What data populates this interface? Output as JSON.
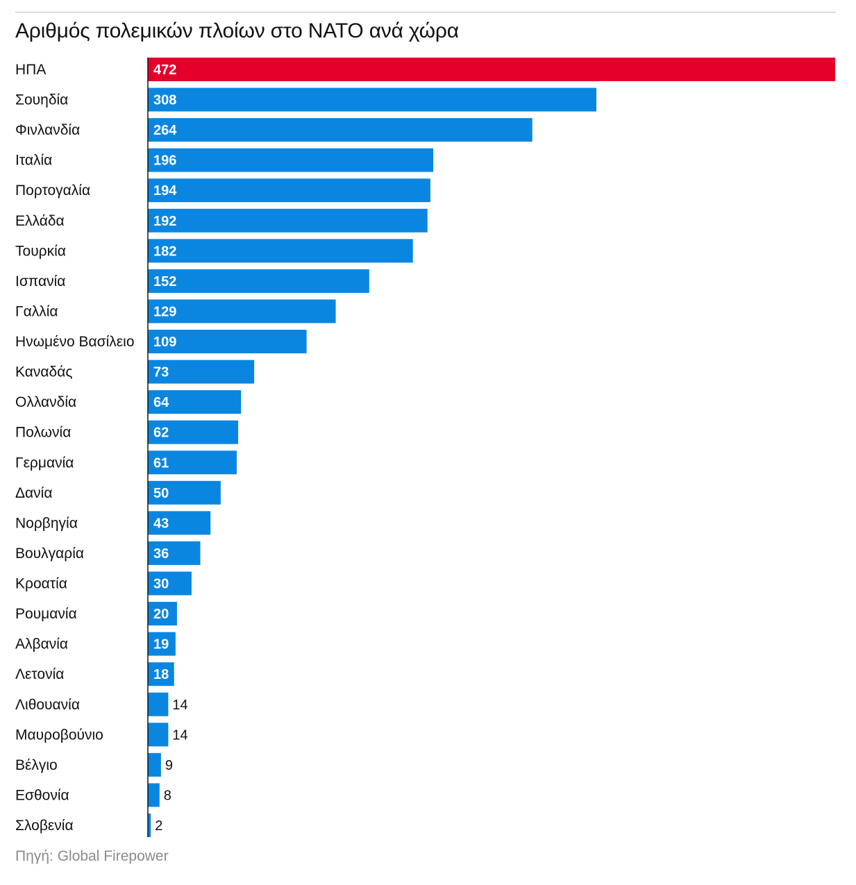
{
  "title": "Αριθμός πολεμικών πλοίων στο NATO ανά χώρα",
  "source": "Πηγή: Global Firepower",
  "colors": {
    "highlight": "#E4002B",
    "bar": "#0A86E0",
    "axis": "#111111",
    "rule": "#bdbdbd"
  },
  "chart_data": {
    "type": "bar",
    "orientation": "horizontal",
    "title": "Αριθμός πολεμικών πλοίων στο NATO ανά χώρα",
    "xlabel": "",
    "ylabel": "",
    "xlim": [
      0,
      472
    ],
    "grid": false,
    "categories": [
      "ΗΠΑ",
      "Σουηδία",
      "Φινλανδία",
      "Ιταλία",
      "Πορτογαλία",
      "Ελλάδα",
      "Τουρκία",
      "Ισπανία",
      "Γαλλία",
      "Ηνωμένο Βασίλειο",
      "Καναδάς",
      "Ολλανδία",
      "Πολωνία",
      "Γερμανία",
      "Δανία",
      "Νορβηγία",
      "Βουλγαρία",
      "Κροατία",
      "Ρουμανία",
      "Αλβανία",
      "Λετονία",
      "Λιθουανία",
      "Μαυροβούνιο",
      "Βέλγιο",
      "Εσθονία",
      "Σλοβενία"
    ],
    "values": [
      472,
      308,
      264,
      196,
      194,
      192,
      182,
      152,
      129,
      109,
      73,
      64,
      62,
      61,
      50,
      43,
      36,
      30,
      20,
      19,
      18,
      14,
      14,
      9,
      8,
      2
    ],
    "highlight_index": 0
  }
}
